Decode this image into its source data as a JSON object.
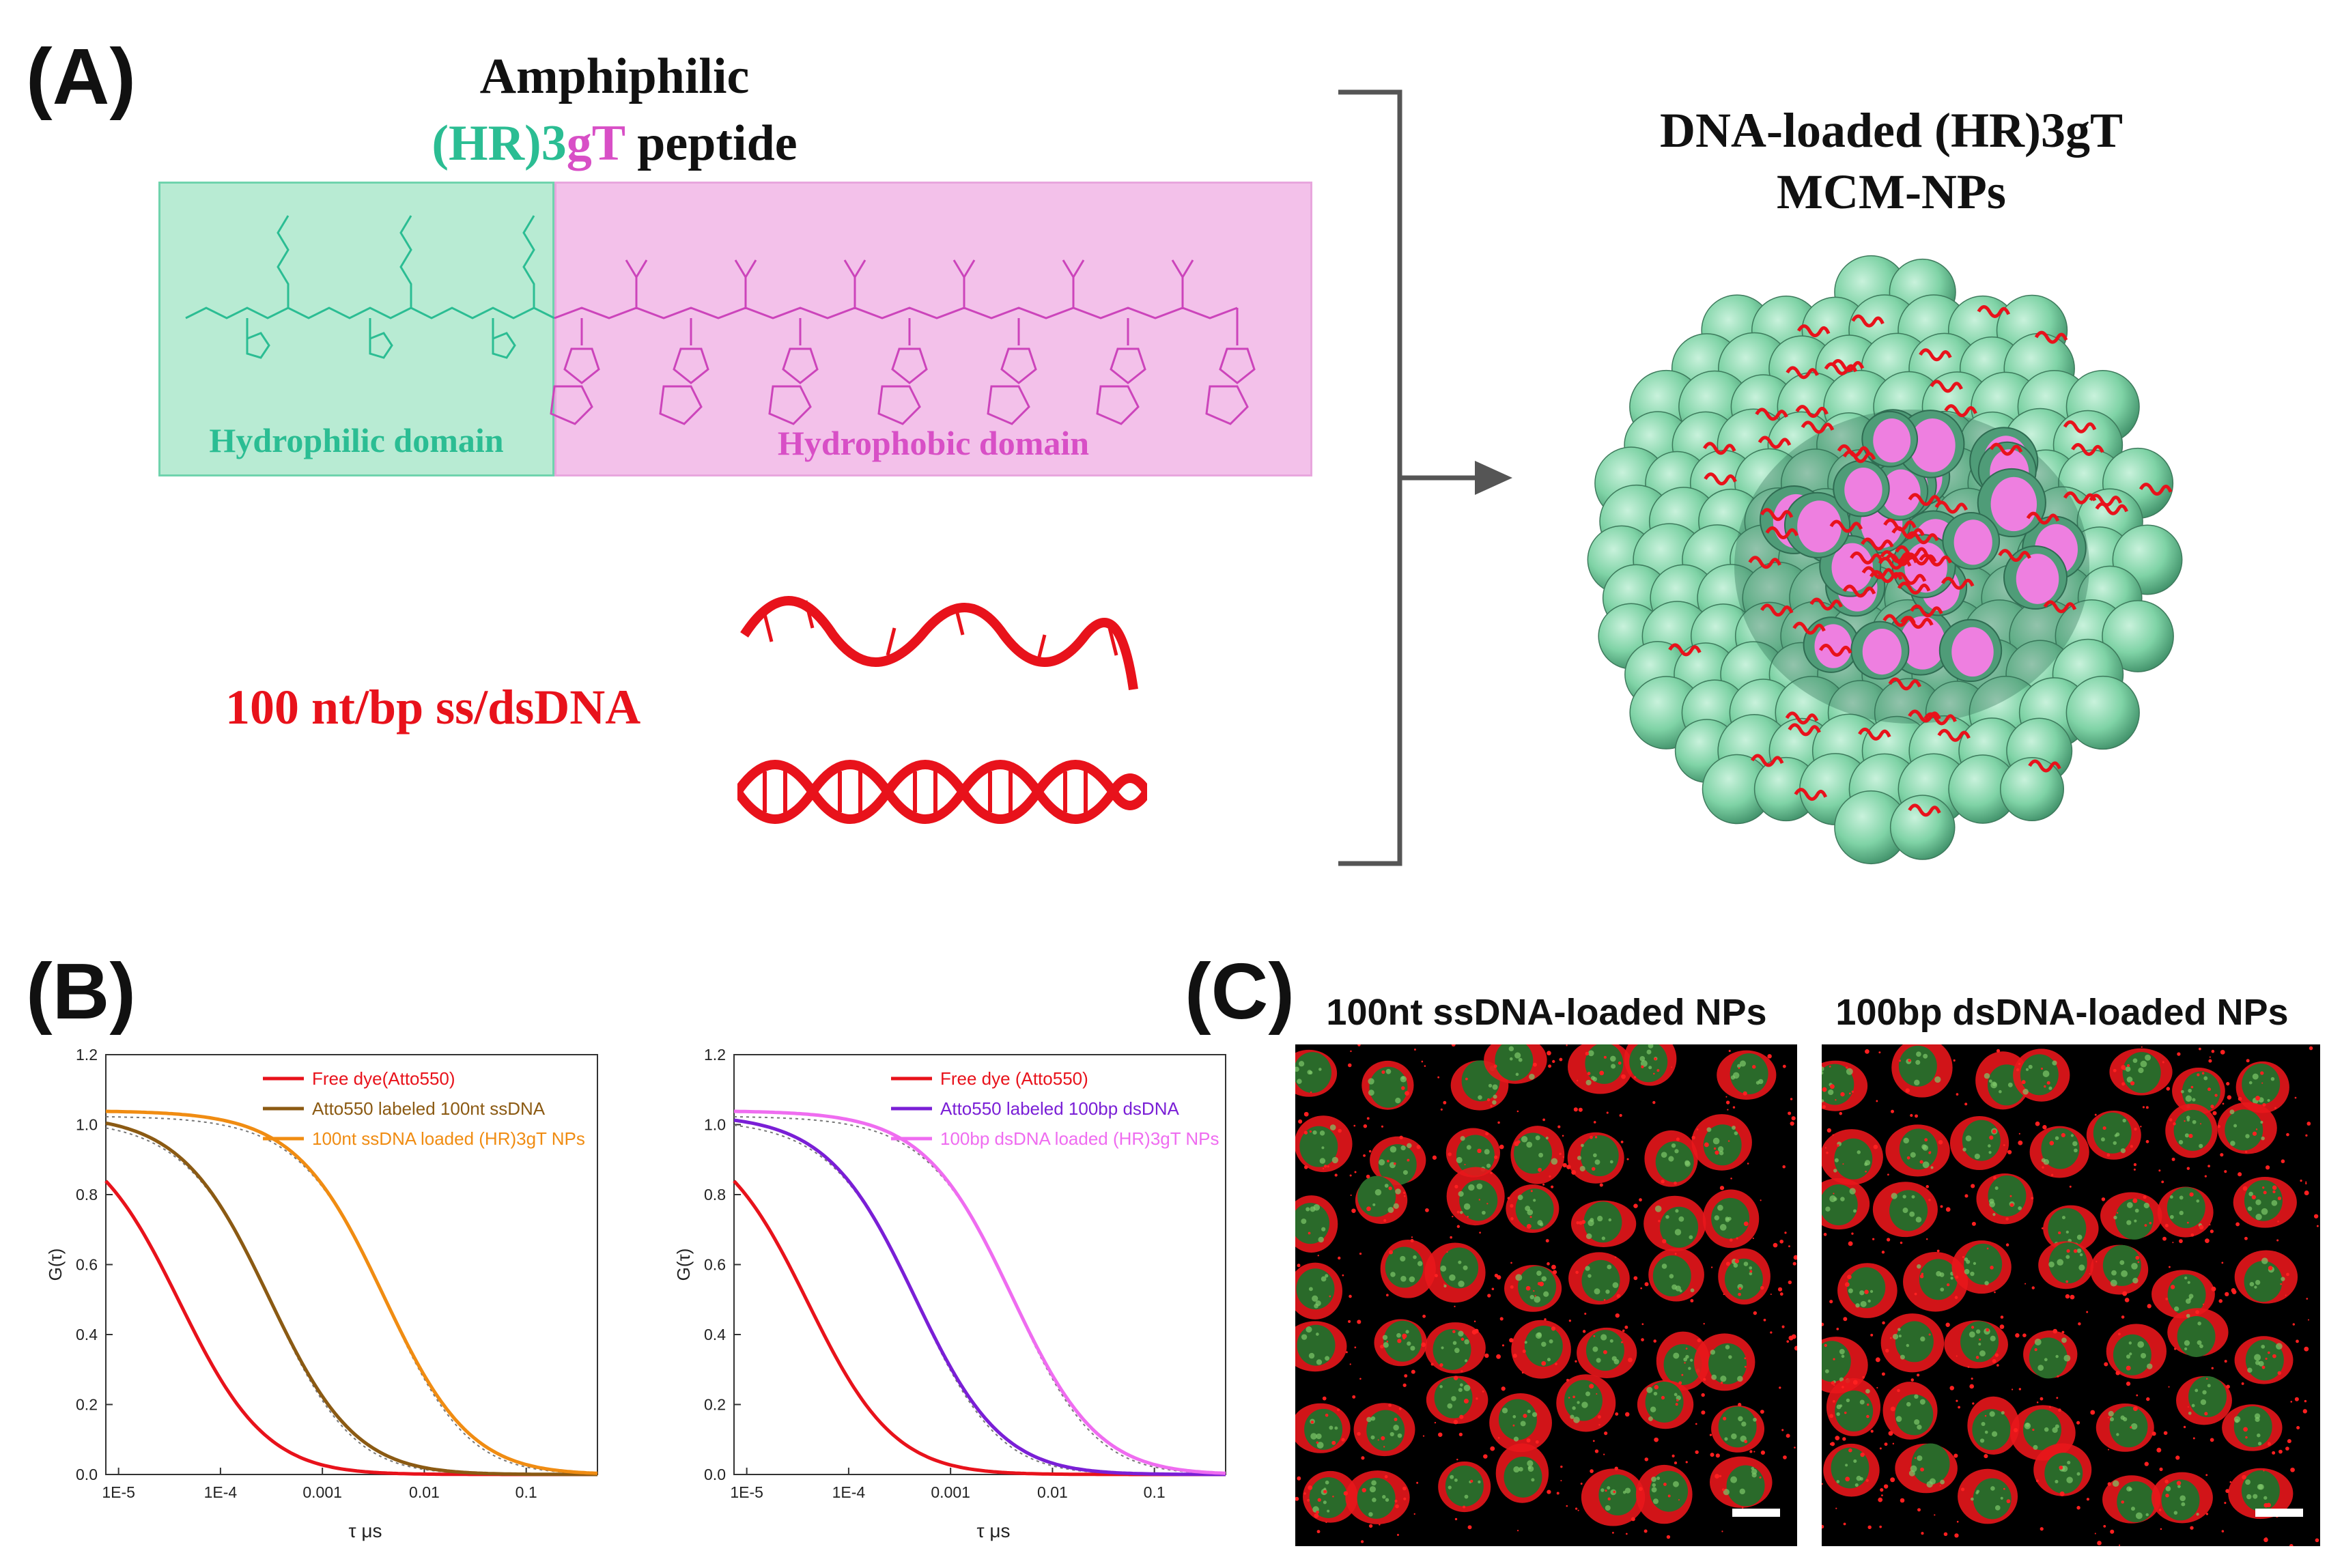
{
  "panel_a": {
    "letter": "(A)",
    "peptide_title_line1": "Amphiphilic",
    "peptide_title_hr": "(HR)3",
    "peptide_title_gt": "gT",
    "peptide_title_rest": " peptide",
    "hydrophilic_label": "Hydrophilic domain",
    "hydrophobic_label": "Hydrophobic domain",
    "dna_label": "100 nt/bp ss/dsDNA",
    "np_title_line1": "DNA-loaded (HR)3gT",
    "np_title_line2": "MCM-NPs",
    "colors": {
      "hydrophilic": "#2bbd93",
      "hydrophobic": "#d84fc6",
      "dna": "#e8121b"
    }
  },
  "panel_b": {
    "letter": "(B)"
  },
  "panel_c": {
    "letter": "(C)",
    "image_left_title": "100nt ssDNA-loaded NPs",
    "image_right_title": "100bp dsDNA-loaded NPs"
  },
  "chart_data": [
    {
      "type": "line",
      "title": "",
      "xlabel": "τ  μs",
      "ylabel": "G(τ)",
      "xscale": "log",
      "xlim": [
        7.5e-06,
        0.5
      ],
      "ylim": [
        0,
        1.2
      ],
      "yticks": [
        "0.0",
        "0.2",
        "0.4",
        "0.6",
        "0.8",
        "1.0",
        "1.2"
      ],
      "xticks": [
        "1E-5",
        "1E-4",
        "0.001",
        "0.01",
        "0.1"
      ],
      "legend": "top-right",
      "series": [
        {
          "name": "Free dye(Atto550)",
          "color": "#e8121b",
          "tau": 4e-05,
          "start": 1.0
        },
        {
          "name": "Atto550 labeled 100nt ssDNA",
          "color": "#8b5a13",
          "tau": 0.0003,
          "start": 1.03
        },
        {
          "name": "100nt ssDNA loaded (HR)3gT NPs",
          "color": "#f08c12",
          "tau": 0.004,
          "start": 1.04
        }
      ]
    },
    {
      "type": "line",
      "title": "",
      "xlabel": "τ  μs",
      "ylabel": "G(τ)",
      "xscale": "log",
      "xlim": [
        7.5e-06,
        0.5
      ],
      "ylim": [
        0,
        1.2
      ],
      "yticks": [
        "0.0",
        "0.2",
        "0.4",
        "0.6",
        "0.8",
        "1.0",
        "1.2"
      ],
      "xticks": [
        "1E-5",
        "1E-4",
        "0.001",
        "0.01",
        "0.1"
      ],
      "legend": "top-right",
      "series": [
        {
          "name": "Free dye (Atto550)",
          "color": "#e8121b",
          "tau": 4e-05,
          "start": 1.0
        },
        {
          "name": "Atto550 labeled 100bp dsDNA",
          "color": "#7a1fd6",
          "tau": 0.00045,
          "start": 1.03
        },
        {
          "name": "100bp dsDNA loaded (HR)3gT NPs",
          "color": "#ef6cf0",
          "tau": 0.004,
          "start": 1.04
        }
      ]
    }
  ]
}
